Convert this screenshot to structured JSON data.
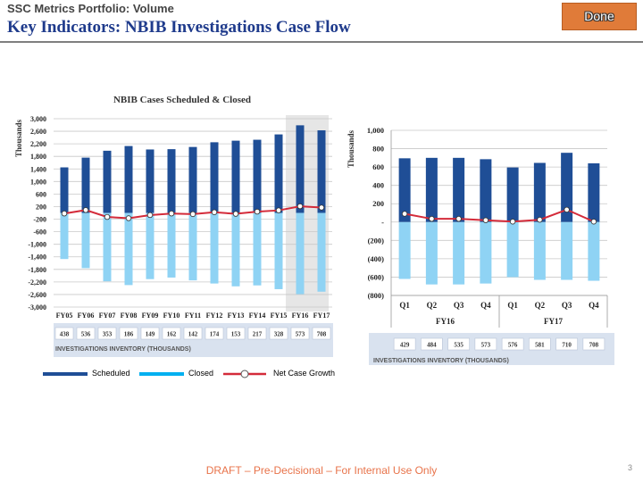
{
  "header": {
    "subtitle": "SSC Metrics Portfolio: Volume",
    "title": "Key Indicators: NBIB Investigations Case Flow",
    "done_label": "Done"
  },
  "chart_data": [
    {
      "type": "bar",
      "title": "NBIB Cases Scheduled & Closed",
      "ylabel": "Thousands",
      "ylim": [
        -3000,
        3000
      ],
      "yticks": [
        3000,
        2600,
        2200,
        1800,
        1400,
        1000,
        600,
        200,
        -200,
        -600,
        -1000,
        -1400,
        -1800,
        -2200,
        -2600,
        -3000
      ],
      "ytick_labels": [
        "3,000",
        "2,600",
        "2,200",
        "1,800",
        "1,400",
        "1,000",
        "600",
        "200",
        "-200",
        "-600",
        "-1,000",
        "-1,400",
        "-1,800",
        "-2,200",
        "-2,600",
        "-3,000"
      ],
      "categories": [
        "FY05",
        "FY06",
        "FY07",
        "FY08",
        "FY09",
        "FY10",
        "FY11",
        "FY12",
        "FY13",
        "FY14",
        "FY15",
        "FY16",
        "FY17"
      ],
      "series": [
        {
          "name": "Scheduled",
          "color": "#1f4e96",
          "values": [
            1450,
            1760,
            1980,
            2130,
            2020,
            2030,
            2100,
            2250,
            2300,
            2330,
            2500,
            2790,
            2630
          ]
        },
        {
          "name": "Closed",
          "color": "#8fd3f4",
          "values": [
            -1470,
            -1760,
            -2180,
            -2300,
            -2110,
            -2060,
            -2150,
            -2250,
            -2340,
            -2310,
            -2430,
            -2590,
            -2510
          ]
        },
        {
          "name": "Net Case Growth",
          "color": "#d42b3a",
          "values": [
            -20,
            90,
            -130,
            -170,
            -70,
            -20,
            -40,
            20,
            -30,
            40,
            80,
            210,
            170
          ]
        }
      ],
      "highlight_categories": [
        "FY16",
        "FY17"
      ],
      "inventory": {
        "values": [
          "438",
          "536",
          "353",
          "186",
          "149",
          "162",
          "142",
          "174",
          "153",
          "217",
          "328",
          "573",
          "708"
        ],
        "label": "INVESTIGATIONS INVENTORY (THOUSANDS)"
      },
      "grid": true,
      "legend_position": "bottom"
    },
    {
      "type": "bar",
      "ylabel": "Thousands",
      "ylim": [
        -800,
        1000
      ],
      "yticks": [
        1000,
        800,
        600,
        400,
        200,
        0,
        -200,
        -400,
        -600,
        -800
      ],
      "ytick_labels": [
        "1,000",
        "800",
        "600",
        "400",
        "200",
        "-",
        "(200)",
        "(400)",
        "(600)",
        "(800)"
      ],
      "categories": [
        "Q1",
        "Q2",
        "Q3",
        "Q4",
        "Q1",
        "Q2",
        "Q3",
        "Q4"
      ],
      "groups": [
        {
          "label": "FY16",
          "span": 4
        },
        {
          "label": "FY17",
          "span": 4
        }
      ],
      "series": [
        {
          "name": "Scheduled",
          "color": "#1f4e96",
          "values": [
            695,
            700,
            700,
            685,
            595,
            645,
            755,
            640
          ]
        },
        {
          "name": "Closed",
          "color": "#8fd3f4",
          "values": [
            -620,
            -680,
            -680,
            -670,
            -600,
            -630,
            -630,
            -640
          ]
        },
        {
          "name": "Net Case Growth",
          "color": "#d42b3a",
          "values": [
            90,
            35,
            35,
            20,
            5,
            25,
            135,
            5
          ]
        }
      ],
      "inventory": {
        "values": [
          "429",
          "484",
          "535",
          "573",
          "576",
          "581",
          "710",
          "708"
        ],
        "label": "INVESTIGATIONS INVENTORY (THOUSANDS)"
      },
      "grid": true
    }
  ],
  "legend": {
    "items": [
      {
        "label": "Scheduled",
        "color": "#1f4e96"
      },
      {
        "label": "Closed",
        "color": "#00b0f0"
      },
      {
        "label": "Net Case Growth",
        "color": "#d42b3a"
      }
    ]
  },
  "footer": {
    "text": "DRAFT – Pre-Decisional – For Internal Use Only",
    "page_number": "3"
  }
}
